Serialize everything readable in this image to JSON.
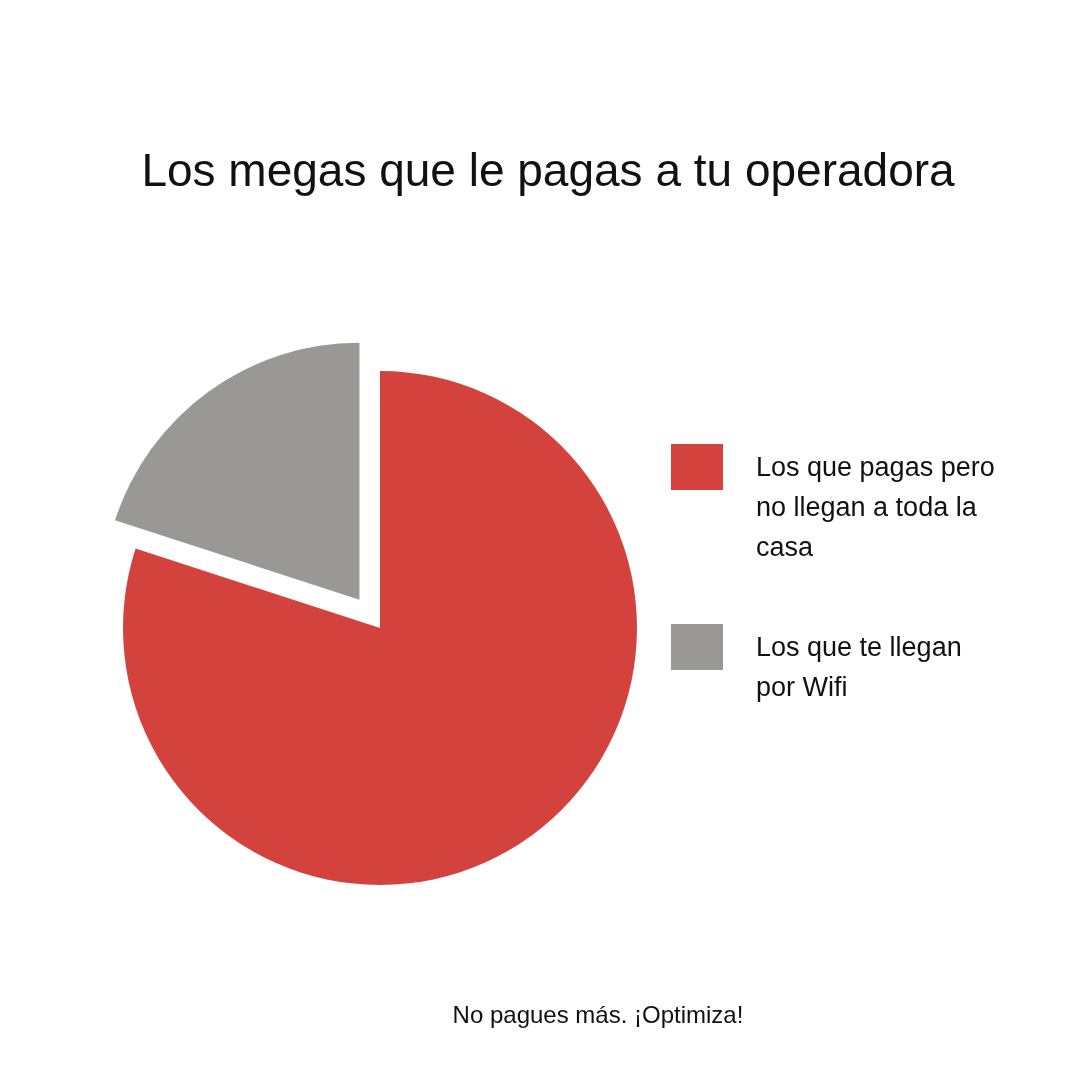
{
  "chart_data": {
    "type": "pie",
    "title": "Los megas que le pagas a tu operadora",
    "categories": [
      "Los que pagas pero no llegan a toda la casa",
      "Los que te llegan por Wifi"
    ],
    "values": [
      80,
      20
    ],
    "colors": [
      "#d4423e",
      "#999897"
    ],
    "legend": "right",
    "annotations": [
      "No  pagues más. ¡Optimiza!"
    ]
  }
}
